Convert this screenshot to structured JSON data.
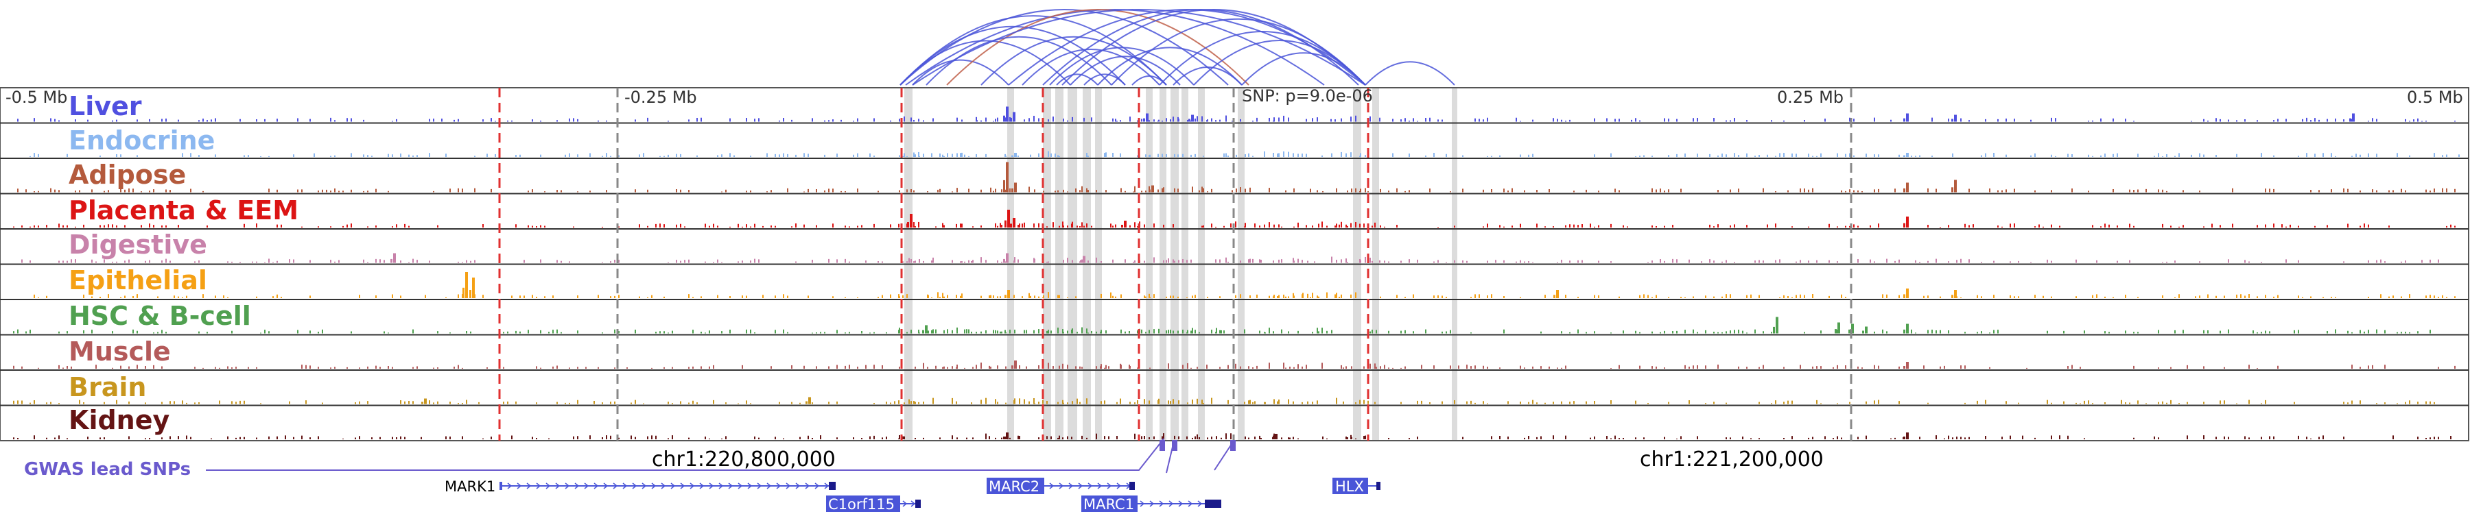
{
  "axis": {
    "labels": [
      "-0.5 Mb",
      "-0.25 Mb",
      "0.25 Mb",
      "0.5 Mb"
    ],
    "snp_label": "SNP: p=9.0e-06"
  },
  "tracks": [
    {
      "name": "Liver",
      "color": "#5050e0"
    },
    {
      "name": "Endocrine",
      "color": "#8cb8f0"
    },
    {
      "name": "Adipose",
      "color": "#b45a3c"
    },
    {
      "name": "Placenta & EEM",
      "color": "#dc1414"
    },
    {
      "name": "Digestive",
      "color": "#c882aa"
    },
    {
      "name": "Epithelial",
      "color": "#f5a014"
    },
    {
      "name": "HSC & B-cell",
      "color": "#50a050"
    },
    {
      "name": "Muscle",
      "color": "#b45a5a"
    },
    {
      "name": "Brain",
      "color": "#c8961e"
    },
    {
      "name": "Kidney",
      "color": "#641414"
    }
  ],
  "coordinates": [
    "chr1:220,800,000",
    "chr1:221,200,000"
  ],
  "gwas": {
    "label": "GWAS lead SNPs",
    "color": "#6a5acd"
  },
  "genes": [
    {
      "name": "MARK1",
      "highlighted": false
    },
    {
      "name": "MARC2",
      "highlighted": true
    },
    {
      "name": "HLX",
      "highlighted": true
    },
    {
      "name": "C1orf115",
      "highlighted": true
    },
    {
      "name": "MARC1",
      "highlighted": true
    }
  ],
  "colors": {
    "loop_main": "#4a55d8",
    "loop_highlight": "#c0604a",
    "snp_line": "#e03030",
    "gene_box": "#4a55d8",
    "highlight_band": "#dcdcdc"
  }
}
